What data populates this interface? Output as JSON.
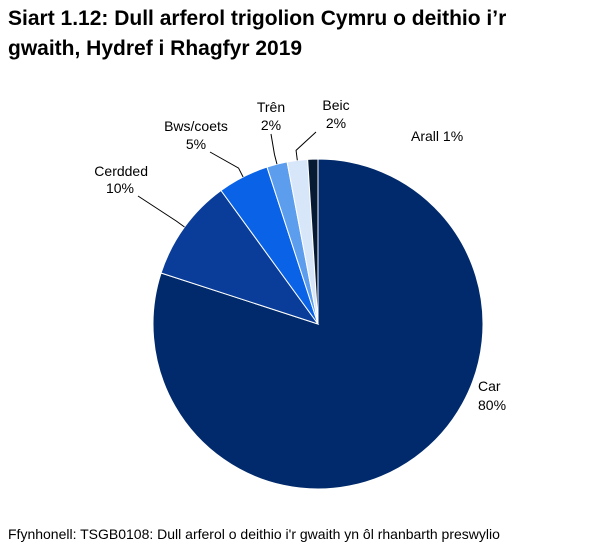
{
  "title_line1": "Siart 1.12: Dull arferol trigolion Cymru o deithio i’r",
  "title_line2": "gwaith, Hydref i Rhagfyr 2019",
  "source": "Ffynhonell: TSGB0108: Dull arferol o deithio i'r gwaith yn ôl rhanbarth preswylio",
  "chart_data": {
    "type": "pie",
    "title": "Siart 1.12: Dull arferol trigolion Cymru o deithio i’r gwaith, Hydref i Rhagfyr 2019",
    "slices": [
      {
        "label": "Car",
        "value": 80,
        "value_label": "80%",
        "color": "#002a6b"
      },
      {
        "label": "Cerdded",
        "value": 10,
        "value_label": "10%",
        "color": "#0a3d99"
      },
      {
        "label": "Bws/coets",
        "value": 5,
        "value_label": "5%",
        "color": "#0a63e6"
      },
      {
        "label": "Trên",
        "value": 2,
        "value_label": "2%",
        "color": "#5c9dee"
      },
      {
        "label": "Beic",
        "value": 2,
        "value_label": "2%",
        "color": "#d8e6fa"
      },
      {
        "label": "Arall",
        "value": 1,
        "value_label": "1%",
        "color": "#071a33"
      }
    ],
    "start": "12 o'clock",
    "direction": "clockwise",
    "labels": "outside with leader lines"
  }
}
